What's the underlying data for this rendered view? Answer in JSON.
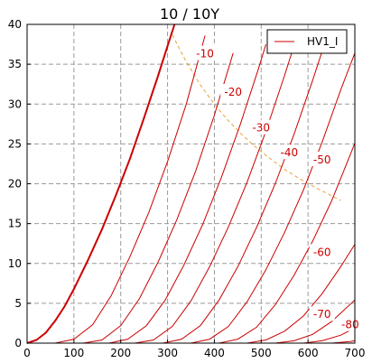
{
  "chart_data": {
    "type": "line",
    "title": "10 / 10Y",
    "xlabel": "",
    "ylabel": "",
    "xlim": [
      0,
      700
    ],
    "ylim": [
      0,
      40
    ],
    "xticks": [
      0,
      100,
      200,
      300,
      400,
      500,
      600,
      700
    ],
    "yticks": [
      0,
      5,
      10,
      15,
      20,
      25,
      30,
      35,
      40
    ],
    "grid": true,
    "legend": {
      "position": "top-right",
      "entries": [
        "HV1_I"
      ]
    },
    "line_color": "#cc0000",
    "power_line_color": "#e8a33a",
    "series": [
      {
        "name": "HV1_I",
        "grid_voltage": "0",
        "x": [
          0,
          20,
          40,
          60,
          80,
          100,
          130,
          160,
          190,
          220,
          250,
          280,
          300,
          315
        ],
        "y": [
          0,
          0.4,
          1.3,
          2.8,
          4.6,
          6.8,
          10.4,
          14.3,
          18.6,
          23.2,
          28.3,
          33.6,
          37.3,
          40
        ]
      },
      {
        "label": "-10",
        "x": [
          60,
          100,
          140,
          180,
          220,
          260,
          300,
          340,
          380
        ],
        "y": [
          0,
          0.5,
          2.3,
          6.0,
          10.9,
          16.4,
          22.8,
          30.0,
          38.6
        ]
      },
      {
        "label": "-20",
        "x": [
          120,
          160,
          200,
          240,
          280,
          320,
          360,
          400,
          440
        ],
        "y": [
          0,
          0.4,
          2.2,
          5.6,
          10.2,
          15.5,
          21.6,
          28.6,
          36.4
        ]
      },
      {
        "label": "-30",
        "x": [
          175,
          215,
          255,
          295,
          335,
          375,
          415,
          455,
          495,
          510
        ],
        "y": [
          0,
          0.5,
          2.2,
          5.4,
          9.8,
          14.9,
          20.8,
          27.4,
          34.6,
          37.5
        ]
      },
      {
        "label": "-40",
        "x": [
          230,
          270,
          310,
          350,
          390,
          430,
          470,
          510,
          550,
          580
        ],
        "y": [
          0,
          0.4,
          2.1,
          5.3,
          9.6,
          14.6,
          20.2,
          26.6,
          33.6,
          39.2
        ]
      },
      {
        "label": "-50",
        "x": [
          290,
          330,
          370,
          410,
          450,
          490,
          530,
          570,
          610,
          640
        ],
        "y": [
          0,
          0.5,
          2.2,
          5.4,
          9.6,
          14.5,
          20.0,
          26.2,
          33.0,
          38.4
        ]
      },
      {
        "label": "-60",
        "x": [
          350,
          390,
          430,
          470,
          510,
          550,
          590,
          630,
          670,
          700
        ],
        "y": [
          0,
          0.5,
          2.1,
          5.2,
          9.2,
          13.9,
          19.2,
          25.2,
          31.8,
          36.4
        ]
      },
      {
        "label": "-70",
        "x": [
          410,
          450,
          490,
          530,
          570,
          610,
          650,
          690,
          700
        ],
        "y": [
          0,
          0.5,
          2.0,
          4.8,
          8.5,
          12.8,
          17.8,
          23.6,
          25.1
        ]
      },
      {
        "label": "-80",
        "x": [
          470,
          510,
          550,
          590,
          630,
          670,
          700
        ],
        "y": [
          0,
          0.4,
          1.5,
          3.4,
          6.2,
          9.6,
          12.4
        ]
      },
      {
        "label": "",
        "x": [
          530,
          570,
          610,
          650,
          700
        ],
        "y": [
          0,
          0.3,
          1.1,
          2.7,
          5.4
        ]
      },
      {
        "label": "",
        "x": [
          590,
          630,
          670,
          700
        ],
        "y": [
          0,
          0.3,
          1.0,
          1.9
        ]
      },
      {
        "label": "",
        "x": [
          650,
          690,
          700
        ],
        "y": [
          0,
          0.2,
          0.3
        ]
      }
    ],
    "curve_labels": [
      {
        "text": "-10",
        "x": 380,
        "y": 36.3
      },
      {
        "text": "-20",
        "x": 440,
        "y": 31.5
      },
      {
        "text": "-30",
        "x": 500,
        "y": 27.0
      },
      {
        "text": "-40",
        "x": 560,
        "y": 23.9
      },
      {
        "text": "-50",
        "x": 630,
        "y": 23.0
      },
      {
        "text": "-60",
        "x": 630,
        "y": 11.4
      },
      {
        "text": "-70",
        "x": 630,
        "y": 3.6
      },
      {
        "text": "-80",
        "x": 690,
        "y": 2.3
      }
    ],
    "power_limit_curve": {
      "x": [
        310,
        340,
        370,
        400,
        430,
        460,
        490,
        520,
        550,
        580,
        610,
        640,
        670
      ],
      "y": [
        38.7,
        35.3,
        32.4,
        30.0,
        27.9,
        26.1,
        24.5,
        23.1,
        21.8,
        20.7,
        19.7,
        18.8,
        17.9
      ]
    }
  }
}
